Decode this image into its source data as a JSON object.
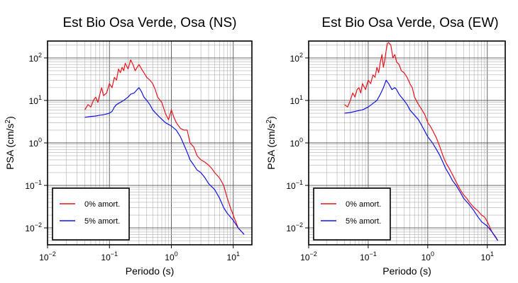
{
  "chart_data": [
    {
      "type": "line",
      "title": "Est Bio Osa Verde, Osa (NS)",
      "xlabel": "Periodo (s)",
      "ylabel": "PSA (cm/s²)",
      "ylabel_parts": {
        "base": "PSA (cm/s",
        "sup": "2",
        "end": ")"
      },
      "xscale": "log",
      "yscale": "log",
      "xlim": [
        0.01,
        20
      ],
      "ylim": [
        0.004,
        250
      ],
      "grid": true,
      "legend_position": "bottom-left",
      "xticks": [
        {
          "base": "10",
          "exp": "−2",
          "value": 0.01
        },
        {
          "base": "10",
          "exp": "−1",
          "value": 0.1
        },
        {
          "base": "10",
          "exp": "0",
          "value": 1
        },
        {
          "base": "10",
          "exp": "1",
          "value": 10
        }
      ],
      "yticks": [
        {
          "base": "10",
          "exp": "2",
          "value": 100
        },
        {
          "base": "10",
          "exp": "1",
          "value": 10
        },
        {
          "base": "10",
          "exp": "0",
          "value": 1
        },
        {
          "base": "10",
          "exp": "−1",
          "value": 0.1
        },
        {
          "base": "10",
          "exp": "−2",
          "value": 0.01
        }
      ],
      "series": [
        {
          "name": "0% amort.",
          "color": "#e8141e",
          "x": [
            0.04,
            0.045,
            0.05,
            0.055,
            0.06,
            0.065,
            0.07,
            0.075,
            0.08,
            0.09,
            0.1,
            0.11,
            0.12,
            0.13,
            0.14,
            0.15,
            0.16,
            0.17,
            0.18,
            0.2,
            0.22,
            0.24,
            0.26,
            0.28,
            0.3,
            0.33,
            0.36,
            0.4,
            0.45,
            0.5,
            0.55,
            0.6,
            0.7,
            0.8,
            0.9,
            1.0,
            1.1,
            1.2,
            1.4,
            1.6,
            1.8,
            2.0,
            2.3,
            2.6,
            3.0,
            3.5,
            4.0,
            4.5,
            5.0,
            6.0,
            7.0,
            8.0,
            9.0,
            10.0,
            12.0,
            15.0
          ],
          "y": [
            6,
            8,
            7,
            10,
            12,
            9,
            14,
            20,
            13,
            15,
            25,
            20,
            35,
            30,
            55,
            45,
            60,
            50,
            75,
            55,
            90,
            70,
            50,
            60,
            70,
            55,
            45,
            35,
            30,
            25,
            18,
            12,
            9,
            5,
            3.5,
            6,
            4,
            3,
            2.2,
            2,
            2,
            1,
            0.8,
            0.5,
            0.4,
            0.35,
            0.3,
            0.25,
            0.2,
            0.15,
            0.1,
            0.05,
            0.03,
            0.02,
            0.01,
            0.007
          ]
        },
        {
          "name": "5% amort.",
          "color": "#1414e0",
          "x": [
            0.04,
            0.05,
            0.06,
            0.07,
            0.08,
            0.09,
            0.1,
            0.11,
            0.12,
            0.13,
            0.15,
            0.17,
            0.2,
            0.22,
            0.25,
            0.28,
            0.3,
            0.33,
            0.36,
            0.4,
            0.45,
            0.5,
            0.6,
            0.7,
            0.8,
            1.0,
            1.2,
            1.4,
            1.6,
            1.8,
            2.0,
            2.3,
            2.6,
            3.0,
            3.5,
            4.0,
            5.0,
            6.0,
            7.0,
            8.0,
            10.0,
            12.0,
            15.0
          ],
          "y": [
            4,
            4.2,
            4.3,
            4.5,
            4.6,
            4.8,
            5,
            5.5,
            7,
            8,
            9,
            10,
            12,
            14,
            15,
            18,
            20,
            16,
            12,
            10,
            8,
            6,
            4.5,
            3.6,
            3,
            2.5,
            2,
            1.4,
            0.9,
            0.6,
            0.4,
            0.3,
            0.23,
            0.2,
            0.15,
            0.11,
            0.08,
            0.05,
            0.03,
            0.022,
            0.015,
            0.01,
            0.007
          ]
        }
      ]
    },
    {
      "type": "line",
      "title": "Est Bio Osa Verde, Osa (EW)",
      "xlabel": "Periodo (s)",
      "ylabel": "PSA (cm/s²)",
      "ylabel_parts": {
        "base": "PSA (cm/s",
        "sup": "2",
        "end": ")"
      },
      "xscale": "log",
      "yscale": "log",
      "xlim": [
        0.01,
        20
      ],
      "ylim": [
        0.004,
        250
      ],
      "grid": true,
      "legend_position": "bottom-left",
      "xticks": [
        {
          "base": "10",
          "exp": "−2",
          "value": 0.01
        },
        {
          "base": "10",
          "exp": "−1",
          "value": 0.1
        },
        {
          "base": "10",
          "exp": "0",
          "value": 1
        },
        {
          "base": "10",
          "exp": "1",
          "value": 10
        }
      ],
      "yticks": [
        {
          "base": "10",
          "exp": "2",
          "value": 100
        },
        {
          "base": "10",
          "exp": "1",
          "value": 10
        },
        {
          "base": "10",
          "exp": "0",
          "value": 1
        },
        {
          "base": "10",
          "exp": "−1",
          "value": 0.1
        },
        {
          "base": "10",
          "exp": "−2",
          "value": 0.01
        }
      ],
      "series": [
        {
          "name": "0% amort.",
          "color": "#e8141e",
          "x": [
            0.04,
            0.045,
            0.05,
            0.055,
            0.06,
            0.065,
            0.07,
            0.075,
            0.08,
            0.09,
            0.1,
            0.11,
            0.12,
            0.13,
            0.14,
            0.15,
            0.16,
            0.17,
            0.18,
            0.19,
            0.2,
            0.21,
            0.22,
            0.24,
            0.26,
            0.28,
            0.3,
            0.33,
            0.36,
            0.4,
            0.45,
            0.5,
            0.55,
            0.6,
            0.7,
            0.8,
            0.9,
            1.0,
            1.1,
            1.2,
            1.4,
            1.6,
            1.8,
            2.0,
            2.3,
            2.6,
            3.0,
            3.5,
            4.0,
            4.5,
            5.0,
            6.0,
            7.0,
            8.0,
            9.0,
            10.0,
            12.0,
            14.0,
            15.0
          ],
          "y": [
            8,
            7,
            10,
            15,
            12,
            18,
            20,
            15,
            25,
            18,
            30,
            25,
            40,
            35,
            60,
            45,
            80,
            120,
            60,
            90,
            150,
            220,
            230,
            200,
            100,
            120,
            80,
            70,
            50,
            45,
            35,
            25,
            20,
            12,
            8,
            6,
            4.5,
            3,
            2.5,
            2,
            1.3,
            0.8,
            0.5,
            0.35,
            0.25,
            0.18,
            0.12,
            0.08,
            0.06,
            0.05,
            0.04,
            0.03,
            0.025,
            0.02,
            0.018,
            0.014,
            0.008,
            0.006,
            0.005
          ]
        },
        {
          "name": "5% amort.",
          "color": "#1414e0",
          "x": [
            0.04,
            0.05,
            0.06,
            0.07,
            0.08,
            0.09,
            0.1,
            0.12,
            0.14,
            0.16,
            0.18,
            0.2,
            0.22,
            0.25,
            0.28,
            0.3,
            0.33,
            0.36,
            0.4,
            0.45,
            0.5,
            0.6,
            0.7,
            0.8,
            1.0,
            1.2,
            1.4,
            1.6,
            1.8,
            2.0,
            2.3,
            2.6,
            3.0,
            3.5,
            4.0,
            5.0,
            6.0,
            7.0,
            8.0,
            10.0,
            12.0,
            15.0
          ],
          "y": [
            5,
            5.2,
            5.5,
            5.8,
            6,
            6.5,
            7,
            8.5,
            10,
            14,
            20,
            30,
            25,
            18,
            20,
            18,
            14,
            12,
            10,
            8,
            6,
            4.5,
            3.5,
            2.5,
            1.4,
            1,
            0.7,
            0.5,
            0.35,
            0.25,
            0.18,
            0.13,
            0.1,
            0.07,
            0.05,
            0.035,
            0.025,
            0.018,
            0.014,
            0.011,
            0.008,
            0.005
          ]
        }
      ]
    }
  ]
}
